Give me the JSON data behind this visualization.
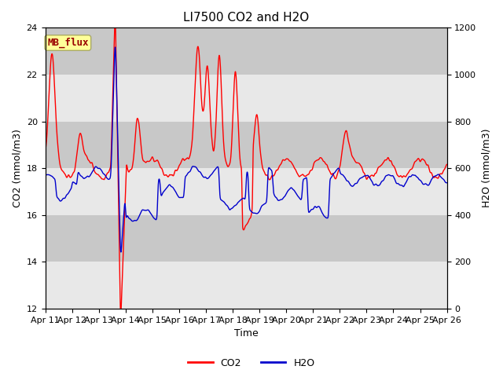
{
  "title": "LI7500 CO2 and H2O",
  "xlabel": "Time",
  "ylabel_left": "CO2 (mmol/m3)",
  "ylabel_right": "H2O (mmol/m3)",
  "co2_color": "#FF0000",
  "h2o_color": "#0000CC",
  "co2_label": "CO2",
  "h2o_label": "H2O",
  "co2_ylim": [
    12,
    24
  ],
  "h2o_ylim": [
    0,
    1200
  ],
  "plot_bg_color": "#D8D8D8",
  "band_color_light": "#E8E8E8",
  "band_color_dark": "#C8C8C8",
  "annotation_text": "MB_flux",
  "annotation_color": "#990000",
  "annotation_bg": "#FFFF99",
  "annotation_edge": "#AAAA66",
  "n_points": 3600,
  "xtick_labels": [
    "Apr 11",
    "Apr 12",
    "Apr 13",
    "Apr 14",
    "Apr 15",
    "Apr 16",
    "Apr 17",
    "Apr 18",
    "Apr 19",
    "Apr 20",
    "Apr 21",
    "Apr 22",
    "Apr 23",
    "Apr 24",
    "Apr 25",
    "Apr 26"
  ],
  "title_fontsize": 11,
  "axis_label_fontsize": 9,
  "tick_label_fontsize": 8,
  "legend_fontsize": 9,
  "line_width": 1.0,
  "fig_width": 6.4,
  "fig_height": 4.8,
  "fig_dpi": 100
}
